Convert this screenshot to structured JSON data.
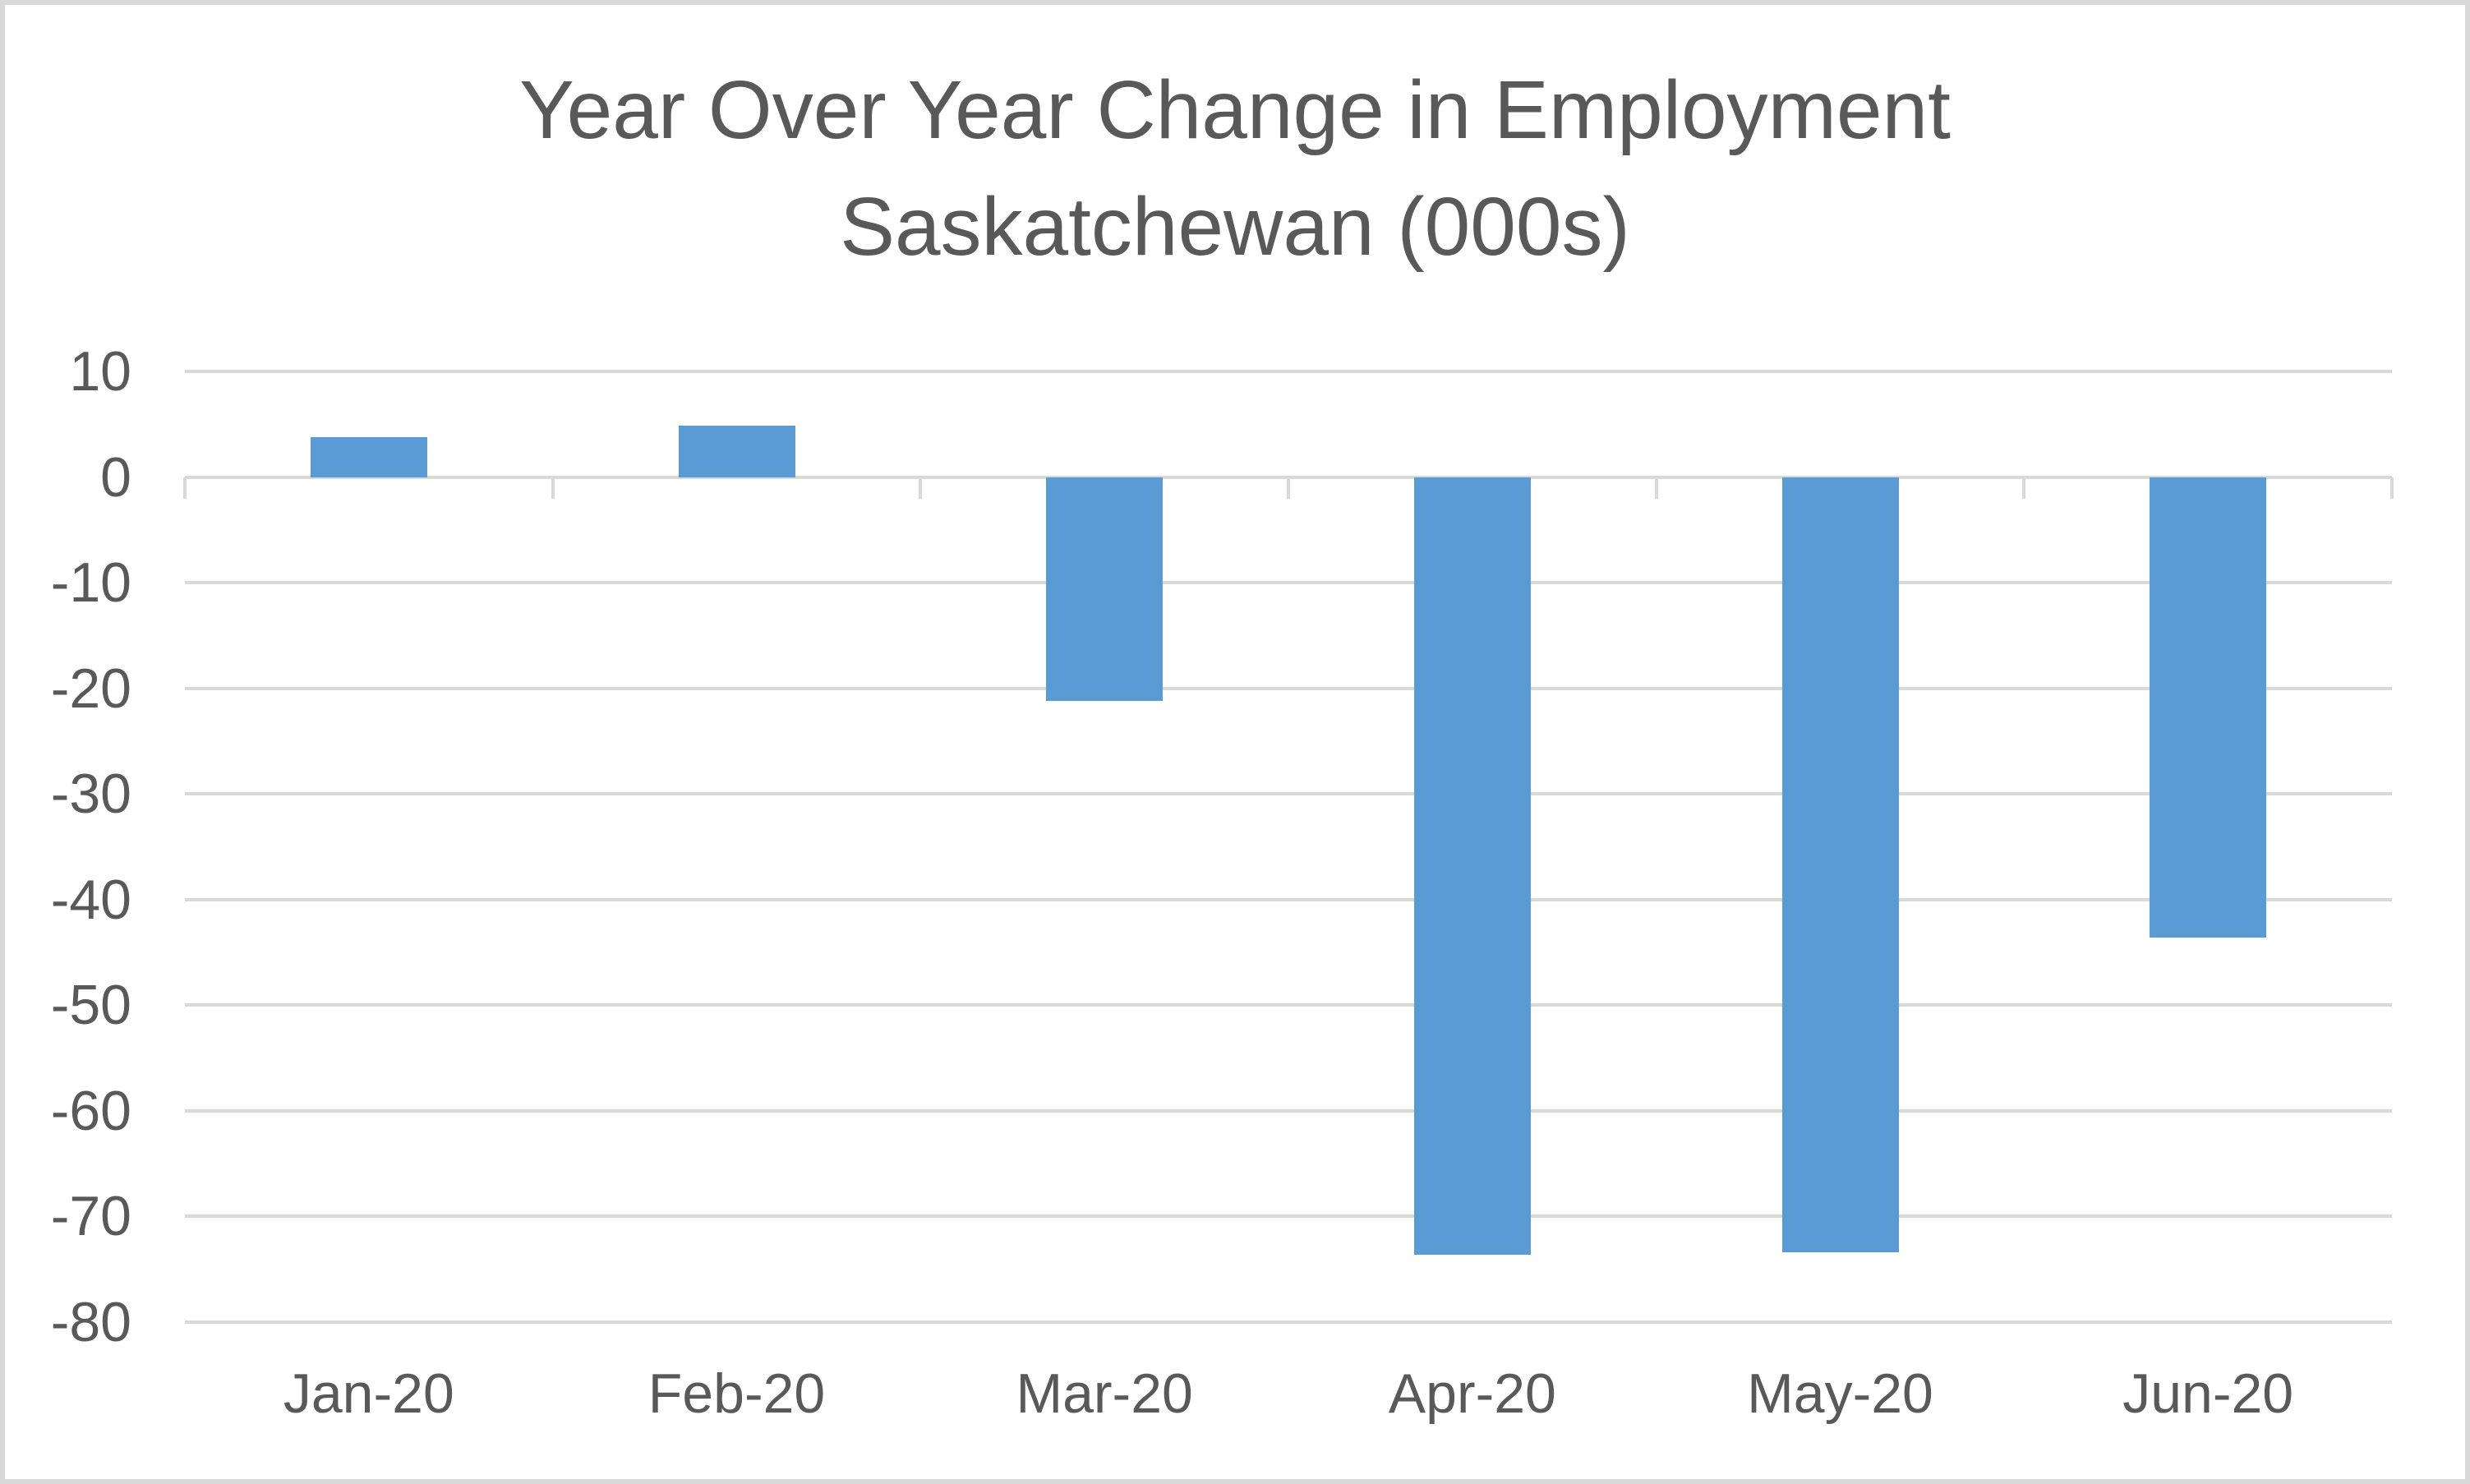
{
  "chart_data": {
    "type": "bar",
    "title_line1": "Year Over Year Change in Employment",
    "title_line2": "Saskatchewan (000s)",
    "categories": [
      "Jan-20",
      "Feb-20",
      "Mar-20",
      "Apr-20",
      "May-20",
      "Jun-20"
    ],
    "values": [
      3.8,
      4.9,
      -21.2,
      -73.6,
      -73.4,
      -43.6
    ],
    "series_name": "Year over year change in employment (thousands)",
    "xlabel": "",
    "ylabel": "",
    "ylim": [
      -80,
      10
    ],
    "yticks": [
      10,
      0,
      -10,
      -20,
      -30,
      -40,
      -50,
      -60,
      -70,
      -80
    ],
    "ytick_labels": [
      "10",
      "0",
      "-10",
      "-20",
      "-30",
      "-40",
      "-50",
      "-60",
      "-70",
      "-80"
    ],
    "grid": "horizontal",
    "legend": "none",
    "bar_color": "#5b9bd5",
    "gridline_color": "#d9d9d9",
    "axis_text_color": "#595959",
    "title_color": "#595959",
    "frame_color": "#d9d9d9",
    "background_color": "#ffffff"
  }
}
